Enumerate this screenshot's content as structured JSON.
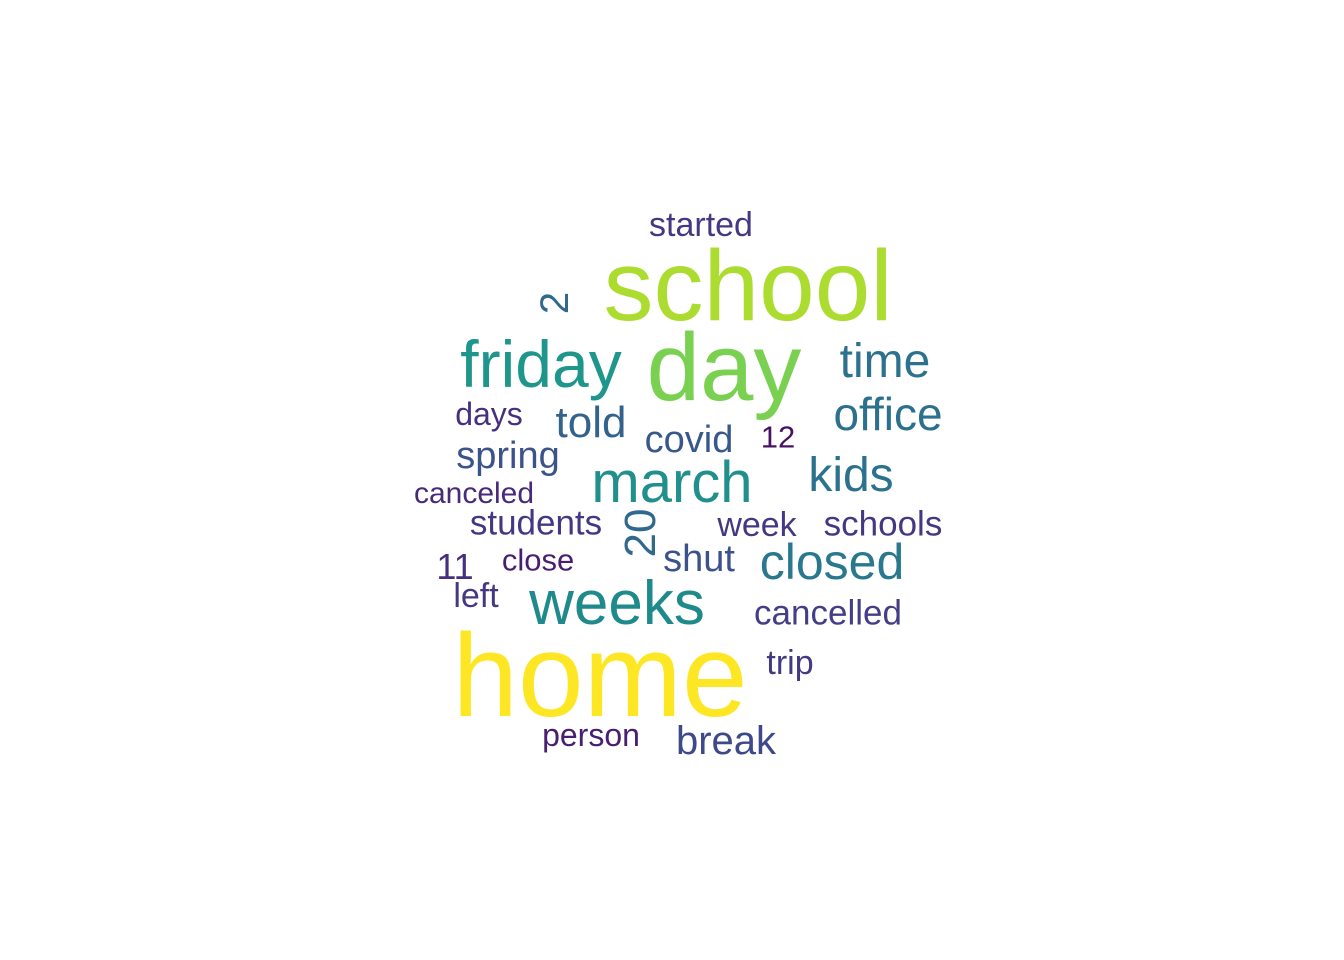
{
  "word_cloud": {
    "palette": "viridis",
    "words": [
      {
        "key": "home",
        "text": "home",
        "color": "#fde725",
        "rotated": false
      },
      {
        "key": "school",
        "text": "school",
        "color": "#addc30",
        "rotated": false
      },
      {
        "key": "day",
        "text": "day",
        "color": "#7ad151",
        "rotated": false
      },
      {
        "key": "friday",
        "text": "friday",
        "color": "#1f968b",
        "rotated": false
      },
      {
        "key": "weeks",
        "text": "weeks",
        "color": "#1f8a8c",
        "rotated": false
      },
      {
        "key": "march",
        "text": "march",
        "color": "#21908d",
        "rotated": false
      },
      {
        "key": "closed",
        "text": "closed",
        "color": "#2a788e",
        "rotated": false
      },
      {
        "key": "time",
        "text": "time",
        "color": "#2c728e",
        "rotated": false
      },
      {
        "key": "office",
        "text": "office",
        "color": "#2d708e",
        "rotated": false
      },
      {
        "key": "kids",
        "text": "kids",
        "color": "#2c728e",
        "rotated": false
      },
      {
        "key": "told",
        "text": "told",
        "color": "#33638d",
        "rotated": false
      },
      {
        "key": "covid",
        "text": "covid",
        "color": "#38588c",
        "rotated": false
      },
      {
        "key": "spring",
        "text": "spring",
        "color": "#3b528b",
        "rotated": false
      },
      {
        "key": "shut",
        "text": "shut",
        "color": "#3b528b",
        "rotated": false
      },
      {
        "key": "break",
        "text": "break",
        "color": "#3e4989",
        "rotated": false
      },
      {
        "key": "cancelled",
        "text": "cancelled",
        "color": "#433e85",
        "rotated": false
      },
      {
        "key": "students",
        "text": "students",
        "color": "#453882",
        "rotated": false
      },
      {
        "key": "week",
        "text": "week",
        "color": "#453882",
        "rotated": false
      },
      {
        "key": "schools",
        "text": "schools",
        "color": "#453882",
        "rotated": false
      },
      {
        "key": "started",
        "text": "started",
        "color": "#453882",
        "rotated": false
      },
      {
        "key": "days",
        "text": "days",
        "color": "#46307e",
        "rotated": false
      },
      {
        "key": "canceled",
        "text": "canceled",
        "color": "#472a7a",
        "rotated": false
      },
      {
        "key": "left",
        "text": "left",
        "color": "#443a83",
        "rotated": false
      },
      {
        "key": "trip",
        "text": "trip",
        "color": "#443a83",
        "rotated": false
      },
      {
        "key": "person",
        "text": "person",
        "color": "#481f70",
        "rotated": false
      },
      {
        "key": "close",
        "text": "close",
        "color": "#481f70",
        "rotated": false
      },
      {
        "key": "n11",
        "text": "11",
        "color": "#46307e",
        "rotated": false
      },
      {
        "key": "n12",
        "text": "12",
        "color": "#471164",
        "rotated": false
      },
      {
        "key": "n2",
        "text": "2",
        "color": "#31688e",
        "rotated": true
      },
      {
        "key": "n20",
        "text": "20",
        "color": "#31688e",
        "rotated": true
      }
    ]
  }
}
